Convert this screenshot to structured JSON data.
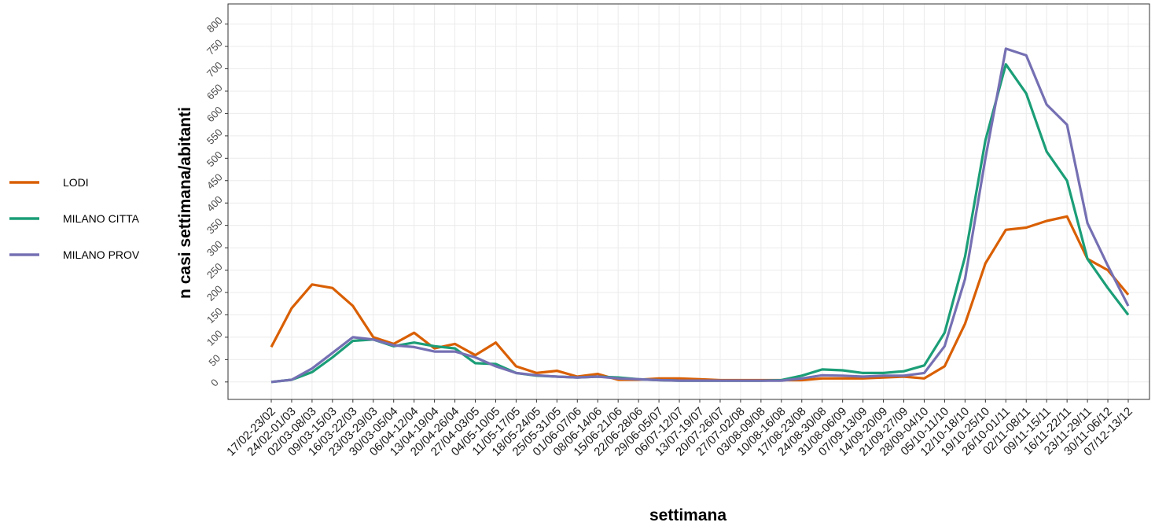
{
  "chart_data": {
    "type": "line",
    "xlabel": "settimana",
    "ylabel": "n casi settimana/abitanti",
    "categories": [
      "17/02-23/02",
      "24/02-01/03",
      "02/03-08/03",
      "09/03-15/03",
      "16/03-22/03",
      "23/03-29/03",
      "30/03-05/04",
      "06/04-12/04",
      "13/04-19/04",
      "20/04-26/04",
      "27/04-03/05",
      "04/05-10/05",
      "11/05-17/05",
      "18/05-24/05",
      "25/05-31/05",
      "01/06-07/06",
      "08/06-14/06",
      "15/06-21/06",
      "22/06-28/06",
      "29/06-05/07",
      "06/07-12/07",
      "13/07-19/07",
      "20/07-26/07",
      "27/07-02/08",
      "03/08-09/08",
      "10/08-16/08",
      "17/08-23/08",
      "24/08-30/08",
      "31/08-06/09",
      "07/09-13/09",
      "14/09-20/09",
      "21/09-27/09",
      "28/09-04/10",
      "05/10-11/10",
      "12/10-18/10",
      "19/10-25/10",
      "26/10-01/11",
      "02/11-08/11",
      "09/11-15/11",
      "16/11-22/11",
      "23/11-29/11",
      "30/11-06/12",
      "07/12-13/12"
    ],
    "series": [
      {
        "name": "LODI",
        "color": "#d95f02",
        "values": [
          78,
          165,
          218,
          210,
          170,
          100,
          85,
          110,
          75,
          85,
          60,
          88,
          35,
          20,
          25,
          12,
          18,
          5,
          5,
          8,
          8,
          6,
          4,
          4,
          4,
          4,
          4,
          8,
          8,
          8,
          10,
          12,
          8,
          35,
          130,
          265,
          340,
          345,
          360,
          370,
          275,
          250,
          195
        ]
      },
      {
        "name": "MILANO CITTA",
        "color": "#1b9e77",
        "values": [
          0,
          5,
          22,
          55,
          92,
          95,
          80,
          88,
          80,
          75,
          42,
          40,
          20,
          14,
          12,
          10,
          12,
          10,
          6,
          4,
          3,
          3,
          3,
          3,
          3,
          4,
          14,
          28,
          26,
          20,
          20,
          24,
          37,
          110,
          280,
          540,
          710,
          645,
          515,
          450,
          275,
          210,
          150
        ]
      },
      {
        "name": "MILANO PROV",
        "color": "#7570b3",
        "values": [
          0,
          5,
          30,
          65,
          100,
          95,
          82,
          78,
          68,
          68,
          55,
          35,
          20,
          15,
          12,
          10,
          12,
          8,
          6,
          4,
          3,
          3,
          3,
          3,
          3,
          3,
          8,
          15,
          14,
          12,
          14,
          14,
          20,
          80,
          230,
          500,
          745,
          730,
          620,
          575,
          355,
          260,
          170
        ]
      }
    ],
    "ylim": [
      -39,
      845
    ],
    "yticks": [
      0,
      50,
      100,
      150,
      200,
      250,
      300,
      350,
      400,
      450,
      500,
      550,
      600,
      650,
      700,
      750,
      800
    ],
    "grid": true,
    "legend": "left"
  }
}
